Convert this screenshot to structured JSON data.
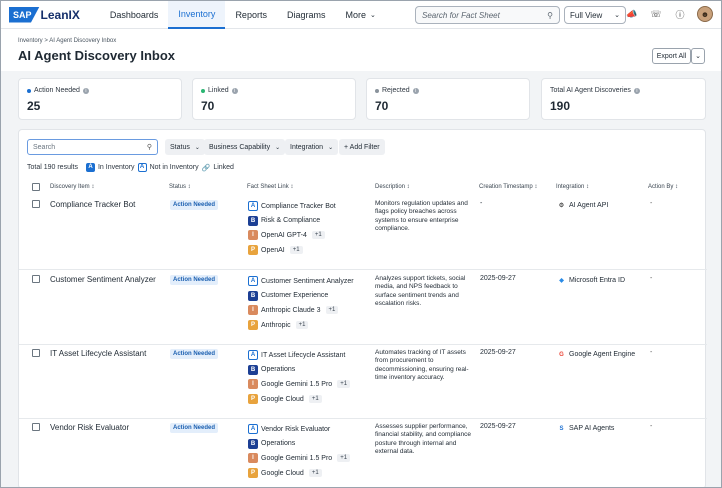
{
  "brand": {
    "sap": "SAP",
    "product": "LeanIX"
  },
  "nav": [
    {
      "label": "Dashboards",
      "active": false
    },
    {
      "label": "Inventory",
      "active": true
    },
    {
      "label": "Reports",
      "active": false
    },
    {
      "label": "Diagrams",
      "active": false
    },
    {
      "label": "More",
      "active": false
    }
  ],
  "top_search": {
    "placeholder": "Search for Fact Sheet"
  },
  "view_select": {
    "value": "Full View"
  },
  "breadcrumb": {
    "root": "Inventory",
    "sep": ">",
    "current": "AI Agent Discovery Inbox"
  },
  "page": {
    "title": "AI Agent Discovery Inbox",
    "export_label": "Export All"
  },
  "stats": [
    {
      "label": "Action Needed",
      "value": "25",
      "dot_color": "#1b6fd1"
    },
    {
      "label": "Linked",
      "value": "70",
      "dot_color": "#2bb673"
    },
    {
      "label": "Rejected",
      "value": "70",
      "dot_color": "#8a939c"
    },
    {
      "label": "Total AI Agent Discoveries",
      "value": "190",
      "dot_color": ""
    }
  ],
  "filters": {
    "search_placeholder": "Search",
    "items": [
      "Status",
      "Business Capability",
      "Integration"
    ],
    "add_filter": "+ Add Filter"
  },
  "summary": {
    "total": "Total 190 results",
    "in_inventory": "In Inventory",
    "not_in_inventory": "Not in Inventory",
    "linked": "Linked"
  },
  "columns": {
    "discovery_item": "Discovery Item",
    "status": "Status",
    "fact_sheet_link": "Fact Sheet Link",
    "description": "Description",
    "creation_timestamp": "Creation Timestamp",
    "integration": "Integration",
    "action_by": "Action By"
  },
  "rows": [
    {
      "name": "Compliance Tracker Bot",
      "status": "Action Needed",
      "fact_sheets": [
        {
          "tag": "A",
          "label": "Compliance Tracker Bot",
          "extra": ""
        },
        {
          "tag": "B",
          "label": "Risk & Compliance",
          "extra": ""
        },
        {
          "tag": "I",
          "label": "OpenAI GPT-4",
          "extra": "+1"
        },
        {
          "tag": "P",
          "label": "OpenAI",
          "extra": "+1"
        }
      ],
      "description": "Monitors regulation updates and flags policy breaches across systems to ensure enterprise compliance.",
      "timestamp": "-",
      "integration": {
        "name": "AI Agent API",
        "icon": "robot-icon",
        "color": "#555555"
      },
      "action_by": "-"
    },
    {
      "name": "Customer Sentiment Analyzer",
      "status": "Action Needed",
      "fact_sheets": [
        {
          "tag": "A",
          "label": "Customer Sentiment Analyzer",
          "extra": ""
        },
        {
          "tag": "B",
          "label": "Customer Experience",
          "extra": ""
        },
        {
          "tag": "I",
          "label": "Anthropic Claude 3",
          "extra": "+1"
        },
        {
          "tag": "P",
          "label": "Anthropic",
          "extra": "+1"
        }
      ],
      "description": "Analyzes support tickets, social media, and NPS feedback to surface sentiment trends and escalation risks.",
      "timestamp": "2025-09-27",
      "integration": {
        "name": "Microsoft Entra ID",
        "icon": "entra-icon",
        "color": "#2a8be6"
      },
      "action_by": "-"
    },
    {
      "name": "IT Asset Lifecycle Assistant",
      "status": "Action Needed",
      "fact_sheets": [
        {
          "tag": "A",
          "label": "IT Asset Lifecycle Assistant",
          "extra": ""
        },
        {
          "tag": "B",
          "label": "Operations",
          "extra": ""
        },
        {
          "tag": "I",
          "label": "Google Gemini 1.5 Pro",
          "extra": "+1"
        },
        {
          "tag": "P",
          "label": "Google Cloud",
          "extra": "+1"
        }
      ],
      "description": "Automates tracking of IT assets from procurement to decommissioning, ensuring real-time inventory accuracy.",
      "timestamp": "2025-09-27",
      "integration": {
        "name": "Google Agent Engine",
        "icon": "google-icon",
        "color": "#ea4335"
      },
      "action_by": "-"
    },
    {
      "name": "Vendor Risk Evaluator",
      "status": "Action Needed",
      "fact_sheets": [
        {
          "tag": "A",
          "label": "Vendor Risk Evaluator",
          "extra": ""
        },
        {
          "tag": "B",
          "label": "Operations",
          "extra": ""
        },
        {
          "tag": "I",
          "label": "Google Gemini 1.5 Pro",
          "extra": "+1"
        },
        {
          "tag": "P",
          "label": "Google Cloud",
          "extra": "+1"
        }
      ],
      "description": "Assesses supplier performance, financial stability, and compliance posture through internal and external data.",
      "timestamp": "2025-09-27",
      "integration": {
        "name": "SAP AI Agents",
        "icon": "sap-icon",
        "color": "#1b6fd1"
      },
      "action_by": "-"
    }
  ]
}
